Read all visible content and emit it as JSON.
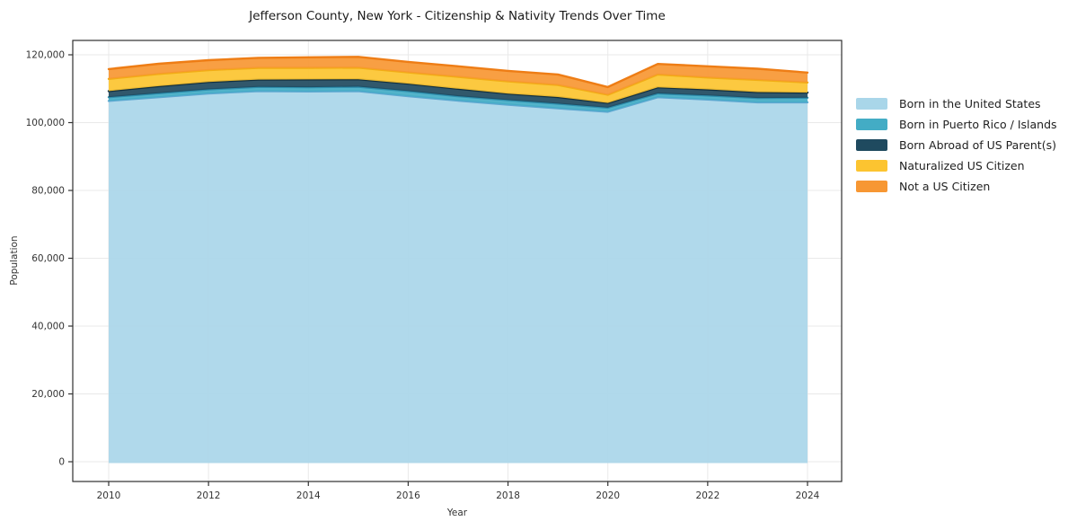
{
  "chart_data": {
    "type": "area",
    "stacked": true,
    "title": "Jefferson County, New York - Citizenship & Nativity Trends Over Time",
    "xlabel": "Year",
    "ylabel": "Population",
    "grid": true,
    "legend_position": "right-outside",
    "x": [
      2010,
      2011,
      2012,
      2013,
      2014,
      2015,
      2016,
      2017,
      2018,
      2019,
      2020,
      2021,
      2022,
      2023,
      2024
    ],
    "x_ticks": [
      2010,
      2012,
      2014,
      2016,
      2018,
      2020,
      2022,
      2024
    ],
    "x_tick_labels": [
      "2010",
      "2012",
      "2014",
      "2016",
      "2018",
      "2020",
      "2022",
      "2024"
    ],
    "y_ticks": [
      0,
      20000,
      40000,
      60000,
      80000,
      100000,
      120000
    ],
    "y_tick_labels": [
      "0",
      "20,000",
      "40,000",
      "60,000",
      "80,000",
      "100,000",
      "120,000"
    ],
    "ylim": [
      0,
      120000
    ],
    "xlim": [
      2009.3,
      2024.65
    ],
    "series": [
      {
        "name": "Born in the United States",
        "fill": "#a9d6e9",
        "line": "#5fa8d1",
        "values": [
          106400,
          107500,
          108600,
          109300,
          109200,
          109300,
          107800,
          106500,
          105300,
          104200,
          103200,
          107500,
          106800,
          106000,
          106000
        ]
      },
      {
        "name": "Born in Puerto Rico / Islands",
        "fill": "#43acc5",
        "line": "#2e8fae",
        "values": [
          1100,
          1150,
          1200,
          1250,
          1250,
          1300,
          1500,
          1300,
          1350,
          1400,
          1200,
          1100,
          1200,
          1250,
          1350
        ]
      },
      {
        "name": "Born Abroad of US Parent(s)",
        "fill": "#1f4a5f",
        "line": "#13303f",
        "values": [
          1800,
          2100,
          2200,
          2150,
          2300,
          2200,
          2200,
          2200,
          1900,
          1950,
          1400,
          1800,
          1800,
          1750,
          1500
        ]
      },
      {
        "name": "Naturalized US Citizen",
        "fill": "#fcc430",
        "line": "#f2ad14",
        "values": [
          3600,
          3600,
          3500,
          3450,
          3400,
          3400,
          3300,
          3500,
          3600,
          3550,
          2400,
          3800,
          3500,
          3600,
          3000
        ]
      },
      {
        "name": "Not a US Citizen",
        "fill": "#f79733",
        "line": "#ee7d15",
        "values": [
          2900,
          3000,
          2900,
          2950,
          3100,
          3200,
          3100,
          3100,
          3100,
          3100,
          2300,
          3100,
          3300,
          3300,
          2900
        ]
      }
    ]
  }
}
